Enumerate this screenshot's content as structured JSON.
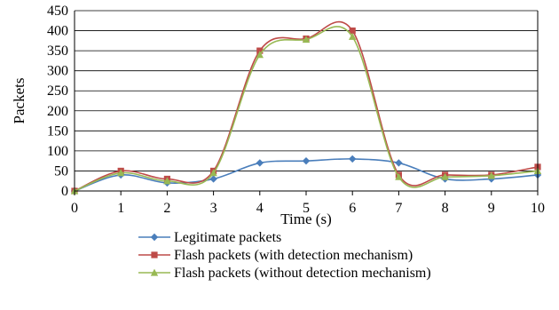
{
  "chart_data": {
    "type": "line",
    "title": "",
    "xlabel": "Time (s)",
    "ylabel": "Packets",
    "x": [
      0,
      1,
      2,
      3,
      4,
      5,
      6,
      7,
      8,
      9,
      10
    ],
    "xticks": [
      "0",
      "1",
      "2",
      "3",
      "4",
      "5",
      "6",
      "7",
      "8",
      "9",
      "10"
    ],
    "yticks": [
      "0",
      "50",
      "100",
      "150",
      "200",
      "250",
      "300",
      "350",
      "400",
      "450"
    ],
    "xlim": [
      0,
      10
    ],
    "ylim": [
      0,
      450
    ],
    "grid": "horizontal",
    "smooth": true,
    "legend_position": "bottom",
    "series": [
      {
        "name": "Legitimate packets",
        "color": "#4a7ebb",
        "marker": "diamond",
        "values": [
          0,
          40,
          20,
          30,
          70,
          75,
          80,
          70,
          30,
          30,
          40
        ]
      },
      {
        "name": "Flash packets (with detection mechanism)",
        "color": "#be4b48",
        "marker": "square",
        "values": [
          0,
          50,
          30,
          50,
          350,
          380,
          400,
          40,
          40,
          40,
          60
        ]
      },
      {
        "name": "Flash packets (without detection mechanism)",
        "color": "#98b954",
        "marker": "triangle",
        "values": [
          0,
          45,
          25,
          45,
          340,
          378,
          385,
          35,
          35,
          38,
          50
        ]
      }
    ]
  }
}
